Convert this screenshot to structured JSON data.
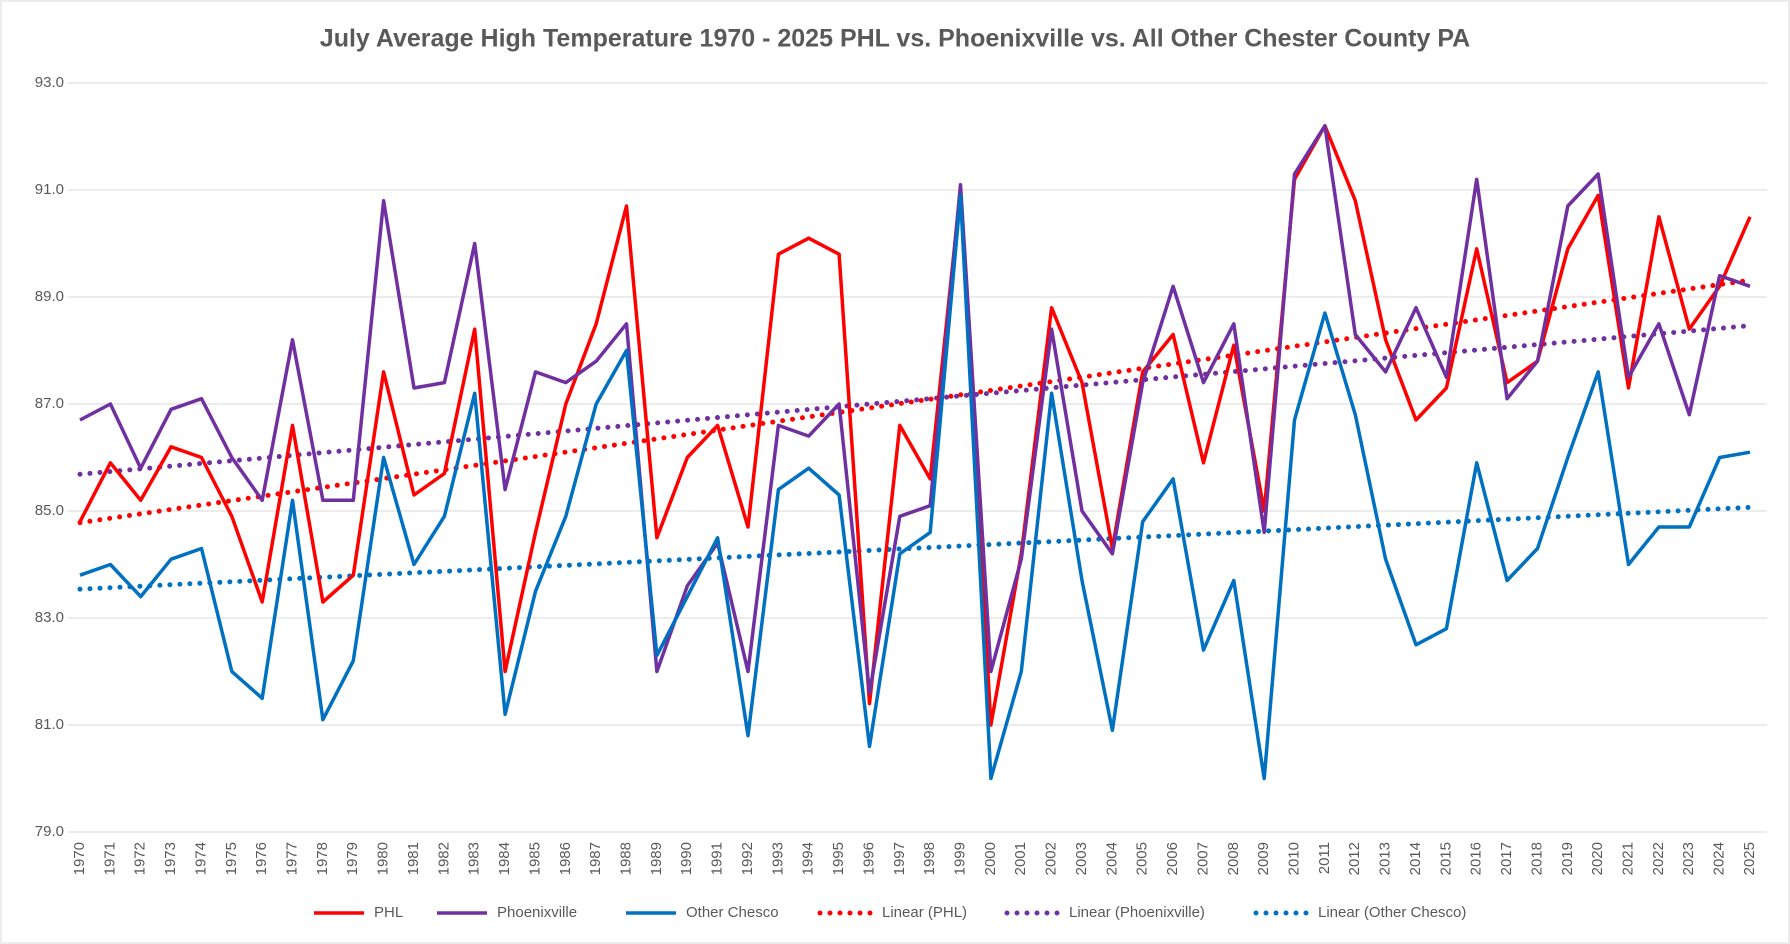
{
  "chart_data": {
    "type": "line",
    "title": "July Average High Temperature 1970 - 2025 PHL vs. Phoenixville vs. All Other Chester County PA",
    "categories": [
      "1970",
      "1971",
      "1972",
      "1973",
      "1974",
      "1975",
      "1976",
      "1977",
      "1978",
      "1979",
      "1980",
      "1981",
      "1982",
      "1983",
      "1984",
      "1985",
      "1986",
      "1987",
      "1988",
      "1989",
      "1990",
      "1991",
      "1992",
      "1993",
      "1994",
      "1995",
      "1996",
      "1997",
      "1998",
      "1999",
      "2000",
      "2001",
      "2002",
      "2003",
      "2004",
      "2005",
      "2006",
      "2007",
      "2008",
      "2009",
      "2010",
      "2011",
      "2012",
      "2013",
      "2014",
      "2015",
      "2016",
      "2017",
      "2018",
      "2019",
      "2020",
      "2021",
      "2022",
      "2023",
      "2024",
      "2025"
    ],
    "series": [
      {
        "name": "PHL",
        "trend": "Linear (PHL)",
        "color": "#ff0000",
        "values": [
          84.8,
          85.9,
          85.2,
          86.2,
          86.0,
          84.9,
          83.3,
          86.6,
          83.3,
          83.8,
          87.6,
          85.3,
          85.7,
          88.4,
          82.0,
          84.6,
          87.0,
          88.5,
          90.7,
          84.5,
          86.0,
          86.6,
          84.7,
          89.8,
          90.1,
          89.8,
          81.4,
          86.6,
          85.6,
          91.0,
          81.0,
          84.2,
          88.8,
          87.4,
          84.3,
          87.6,
          88.3,
          85.9,
          88.1,
          85.0,
          91.2,
          92.2,
          90.8,
          88.2,
          86.7,
          87.3,
          89.9,
          87.4,
          87.8,
          89.9,
          90.9,
          87.3,
          90.5,
          88.4,
          89.2,
          90.5
        ]
      },
      {
        "name": "Phoenixville",
        "trend": "Linear (Phoenixville)",
        "color": "#7030a0",
        "values": [
          86.7,
          87.0,
          85.8,
          86.9,
          87.1,
          86.0,
          85.2,
          88.2,
          85.2,
          85.2,
          90.8,
          87.3,
          87.4,
          90.0,
          85.4,
          87.6,
          87.4,
          87.8,
          88.5,
          82.0,
          83.6,
          84.4,
          82.0,
          86.6,
          86.4,
          87.0,
          81.6,
          84.9,
          85.1,
          91.1,
          82.0,
          84.1,
          88.4,
          85.0,
          84.2,
          87.4,
          89.2,
          87.4,
          88.5,
          84.6,
          91.3,
          92.2,
          88.3,
          87.6,
          88.8,
          87.5,
          91.2,
          87.1,
          87.8,
          90.7,
          91.3,
          87.5,
          88.5,
          86.8,
          89.4,
          89.2
        ]
      },
      {
        "name": "Other Chesco",
        "trend": "Linear (Other Chesco)",
        "color": "#0070c0",
        "values": [
          83.8,
          84.0,
          83.4,
          84.1,
          84.3,
          82.0,
          81.5,
          85.2,
          81.1,
          82.2,
          86.0,
          84.0,
          84.9,
          87.2,
          81.2,
          83.5,
          84.9,
          87.0,
          88.0,
          82.3,
          83.4,
          84.5,
          80.8,
          85.4,
          85.8,
          85.3,
          80.6,
          84.2,
          84.6,
          90.9,
          80.0,
          82.0,
          87.2,
          83.7,
          80.9,
          84.8,
          85.6,
          82.4,
          83.7,
          80.0,
          86.7,
          88.7,
          86.8,
          84.1,
          82.5,
          82.8,
          85.9,
          83.7,
          84.3,
          86.0,
          87.6,
          84.0,
          84.7,
          84.7,
          86.0,
          86.1
        ]
      }
    ],
    "ylim": [
      79,
      93
    ],
    "yticks": [
      {
        "value": 79,
        "label": "79.0"
      },
      {
        "value": 81,
        "label": "81.0"
      },
      {
        "value": 83,
        "label": "83.0"
      },
      {
        "value": 85,
        "label": "85.0"
      },
      {
        "value": 87,
        "label": "87.0"
      },
      {
        "value": 89,
        "label": "89.0"
      },
      {
        "value": 91,
        "label": "91.0"
      },
      {
        "value": 93,
        "label": "93.0"
      }
    ],
    "grid": true,
    "legend": "bottom"
  }
}
